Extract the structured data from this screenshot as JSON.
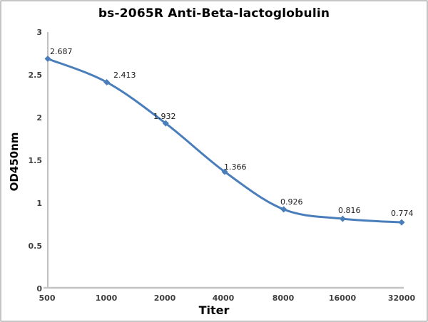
{
  "chart_data": {
    "type": "line",
    "title": "bs-2065R Anti-Beta-lactoglobulin",
    "xlabel": "Titer",
    "ylabel": "OD450nm",
    "categories": [
      "500",
      "1000",
      "2000",
      "4000",
      "8000",
      "16000",
      "32000"
    ],
    "series": [
      {
        "name": "OD450nm",
        "values": [
          2.687,
          2.413,
          1.932,
          1.366,
          0.926,
          0.816,
          0.774
        ]
      }
    ],
    "data_labels": [
      "2.687",
      "2.413",
      "1.932",
      "1.366",
      "0.926",
      "0.816",
      "0.774"
    ],
    "y_ticks": [
      "3",
      "2.5",
      "2",
      "1.5",
      "1",
      "0.5",
      "0"
    ],
    "y_tick_values": [
      3,
      2.5,
      2,
      1.5,
      1,
      0.5,
      0
    ],
    "ylim": [
      0,
      3
    ],
    "x_scale": "log2-categorical",
    "grid": false,
    "legend": "none",
    "line_color": "#4A7EBB",
    "marker": "diamond",
    "axis_color_x": "#c3c3c3",
    "axis_color_y": "#9f9f9f"
  }
}
